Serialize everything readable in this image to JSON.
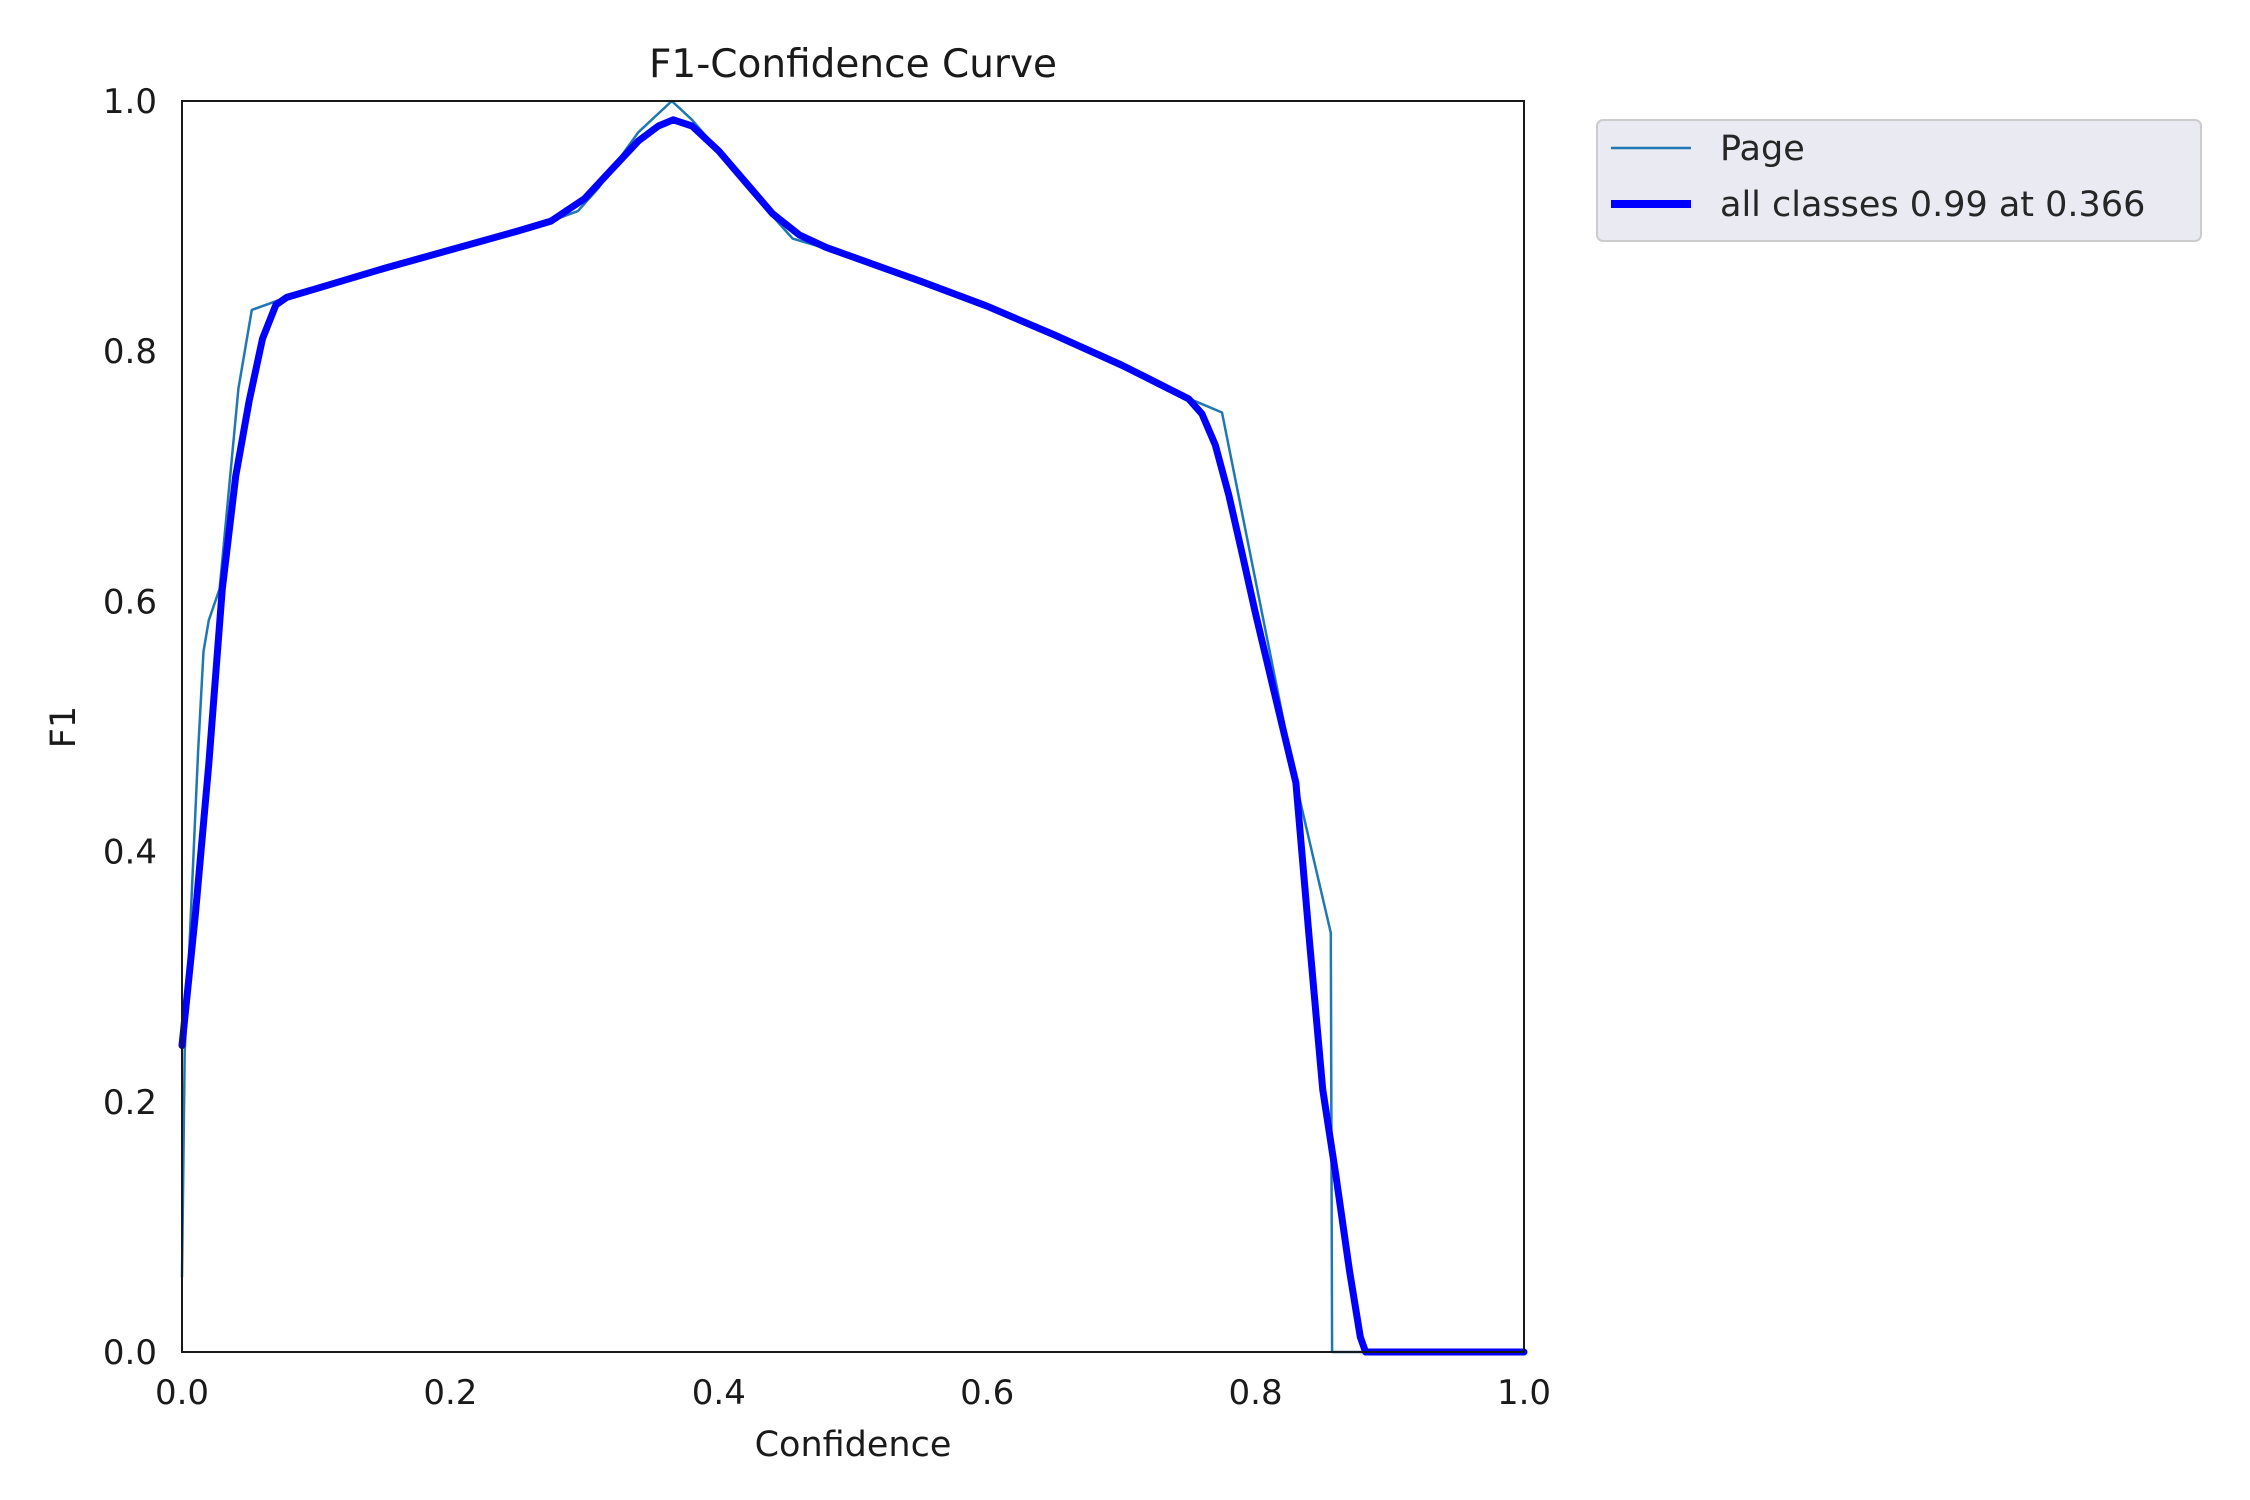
{
  "chart_data": {
    "type": "line",
    "title": "F1-Confidence Curve",
    "xlabel": "Confidence",
    "ylabel": "F1",
    "xlim": [
      0,
      1
    ],
    "ylim": [
      0,
      1
    ],
    "xticks": [
      "0.0",
      "0.2",
      "0.4",
      "0.6",
      "0.8",
      "1.0"
    ],
    "yticks": [
      "0.0",
      "0.2",
      "0.4",
      "0.6",
      "0.8",
      "1.0"
    ],
    "grid": false,
    "legend_position": "outside-top-right",
    "series": [
      {
        "name": "Page",
        "color": "#1f77b4",
        "style": "thin",
        "points": [
          [
            0.0,
            0.06
          ],
          [
            0.002,
            0.24
          ],
          [
            0.012,
            0.48
          ],
          [
            0.016,
            0.56
          ],
          [
            0.02,
            0.585
          ],
          [
            0.028,
            0.61
          ],
          [
            0.035,
            0.69
          ],
          [
            0.042,
            0.77
          ],
          [
            0.052,
            0.833
          ],
          [
            0.065,
            0.838
          ],
          [
            0.075,
            0.842
          ],
          [
            0.15,
            0.866
          ],
          [
            0.25,
            0.897
          ],
          [
            0.275,
            0.904
          ],
          [
            0.295,
            0.912
          ],
          [
            0.31,
            0.93
          ],
          [
            0.34,
            0.975
          ],
          [
            0.365,
            1.0
          ],
          [
            0.38,
            0.985
          ],
          [
            0.4,
            0.96
          ],
          [
            0.43,
            0.92
          ],
          [
            0.455,
            0.89
          ],
          [
            0.48,
            0.882
          ],
          [
            0.6,
            0.836
          ],
          [
            0.7,
            0.787
          ],
          [
            0.755,
            0.76
          ],
          [
            0.775,
            0.751
          ],
          [
            0.83,
            0.455
          ],
          [
            0.856,
            0.335
          ],
          [
            0.857,
            0.0
          ],
          [
            1.0,
            0.0
          ]
        ]
      },
      {
        "name": "all classes 0.99 at 0.366",
        "color": "#0000ff",
        "style": "thick",
        "points": [
          [
            0.0,
            0.245
          ],
          [
            0.01,
            0.35
          ],
          [
            0.02,
            0.47
          ],
          [
            0.03,
            0.61
          ],
          [
            0.04,
            0.7
          ],
          [
            0.05,
            0.76
          ],
          [
            0.06,
            0.81
          ],
          [
            0.07,
            0.837
          ],
          [
            0.078,
            0.843
          ],
          [
            0.1,
            0.85
          ],
          [
            0.15,
            0.866
          ],
          [
            0.2,
            0.881
          ],
          [
            0.25,
            0.896
          ],
          [
            0.275,
            0.904
          ],
          [
            0.3,
            0.922
          ],
          [
            0.32,
            0.945
          ],
          [
            0.34,
            0.968
          ],
          [
            0.355,
            0.98
          ],
          [
            0.366,
            0.985
          ],
          [
            0.38,
            0.98
          ],
          [
            0.4,
            0.96
          ],
          [
            0.42,
            0.935
          ],
          [
            0.44,
            0.91
          ],
          [
            0.46,
            0.893
          ],
          [
            0.48,
            0.883
          ],
          [
            0.55,
            0.856
          ],
          [
            0.6,
            0.836
          ],
          [
            0.65,
            0.813
          ],
          [
            0.7,
            0.789
          ],
          [
            0.75,
            0.762
          ],
          [
            0.76,
            0.75
          ],
          [
            0.77,
            0.725
          ],
          [
            0.78,
            0.685
          ],
          [
            0.79,
            0.638
          ],
          [
            0.8,
            0.59
          ],
          [
            0.81,
            0.545
          ],
          [
            0.82,
            0.5
          ],
          [
            0.83,
            0.455
          ],
          [
            0.84,
            0.33
          ],
          [
            0.85,
            0.21
          ],
          [
            0.86,
            0.14
          ],
          [
            0.87,
            0.065
          ],
          [
            0.878,
            0.012
          ],
          [
            0.882,
            0.0
          ],
          [
            0.9,
            0.0
          ],
          [
            1.0,
            0.0
          ]
        ]
      }
    ]
  }
}
